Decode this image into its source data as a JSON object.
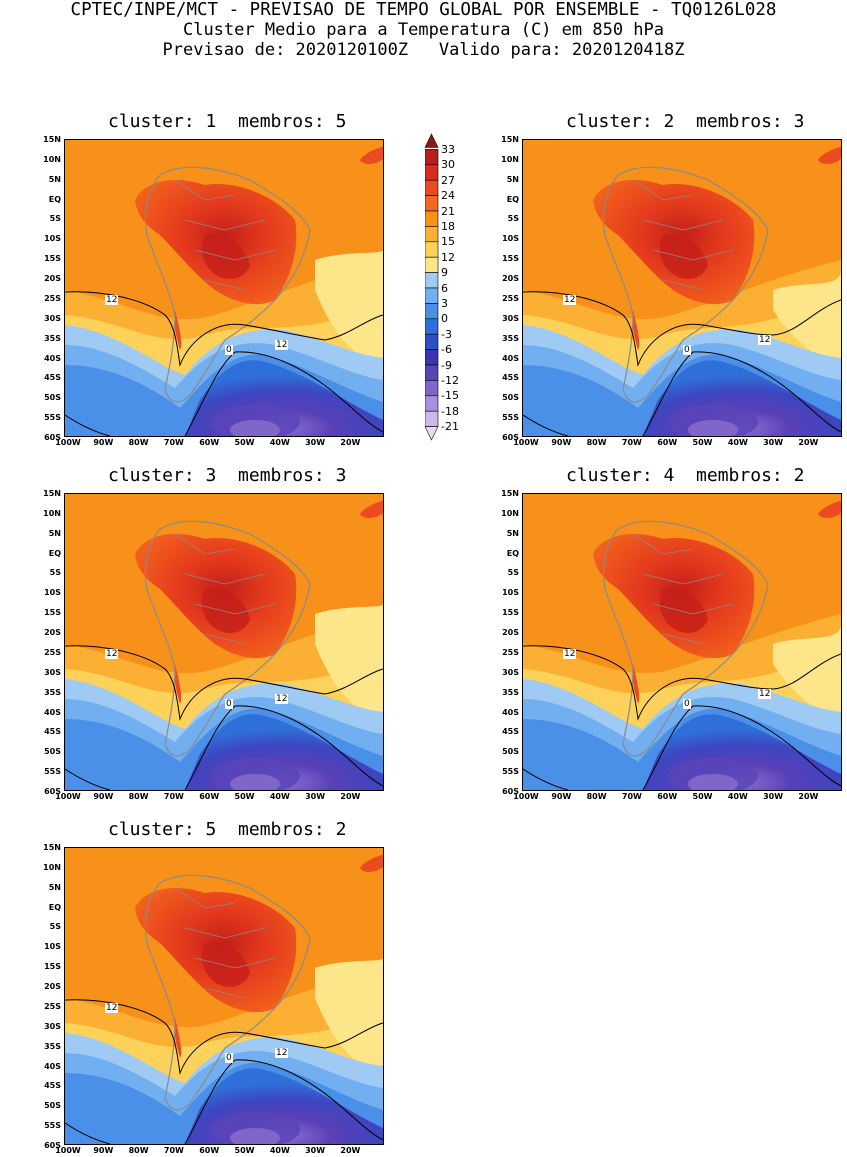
{
  "header": {
    "line1": "CPTEC/INPE/MCT - PREVISAO DE TEMPO GLOBAL POR ENSEMBLE - TQ0126L028",
    "line2": "Cluster Medio para a Temperatura (C) em 850 hPa",
    "line3": "Previsao de: 2020120100Z   Valido para: 2020120418Z"
  },
  "panels": [
    {
      "cluster": "1",
      "members": "5",
      "title": "cluster: 1  membros: 5",
      "contour_labels": [
        "12",
        "12",
        "0"
      ]
    },
    {
      "cluster": "2",
      "members": "3",
      "title": "cluster: 2  membros: 3",
      "contour_labels": [
        "12",
        "12",
        "0"
      ]
    },
    {
      "cluster": "3",
      "members": "3",
      "title": "cluster: 3  membros: 3",
      "contour_labels": [
        "12",
        "12",
        "0"
      ]
    },
    {
      "cluster": "4",
      "members": "2",
      "title": "cluster: 4  membros: 2",
      "contour_labels": [
        "12",
        "12",
        "0"
      ]
    },
    {
      "cluster": "5",
      "members": "2",
      "title": "cluster: 5  membros: 2",
      "contour_labels": [
        "12",
        "12",
        "0"
      ]
    }
  ],
  "lat_labels": [
    "15N",
    "10N",
    "5N",
    "EQ",
    "5S",
    "10S",
    "15S",
    "20S",
    "25S",
    "30S",
    "35S",
    "40S",
    "45S",
    "50S",
    "55S",
    "60S"
  ],
  "lon_labels": [
    "100W",
    "90W",
    "80W",
    "70W",
    "60W",
    "50W",
    "40W",
    "30W",
    "20W"
  ],
  "colorbar": {
    "labels": [
      "33",
      "30",
      "27",
      "24",
      "21",
      "18",
      "15",
      "12",
      "9",
      "6",
      "3",
      "0",
      "-3",
      "-6",
      "-9",
      "-12",
      "-15",
      "-18",
      "-21"
    ],
    "colors": [
      "#8c1a12",
      "#b81e1b",
      "#dc2a1c",
      "#ec4a20",
      "#f46a1c",
      "#f8911a",
      "#fbb034",
      "#fcd25a",
      "#fde58a",
      "#9fcaf4",
      "#72aff0",
      "#4b90e8",
      "#2f6fd8",
      "#2b51c4",
      "#3a35b0",
      "#5b44b8",
      "#8066c8",
      "#a890dc",
      "#cbb8ec",
      "#e6dbf6"
    ]
  }
}
